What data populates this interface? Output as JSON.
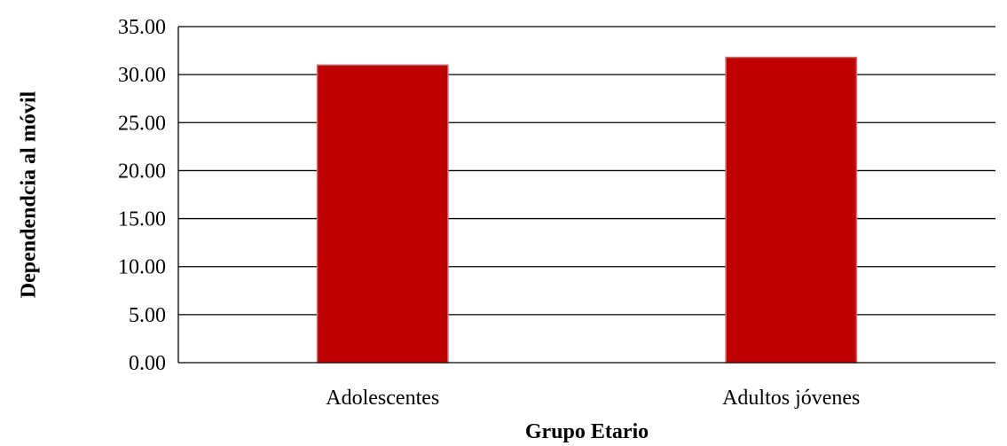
{
  "chart_data": {
    "type": "bar",
    "title": "",
    "xlabel": "Grupo Etario",
    "ylabel": "Dependendcia al móvil",
    "categories": [
      "Adolescentes",
      "Adultos jóvenes"
    ],
    "values": [
      31.0,
      31.8
    ],
    "ylim": [
      0,
      35
    ],
    "ytick_step": 5,
    "ytick_labels": [
      "0.00",
      "5.00",
      "10.00",
      "15.00",
      "20.00",
      "25.00",
      "30.00",
      "35.00"
    ],
    "grid": true,
    "legend": "none",
    "colors": {
      "bar_fill": "#c00000",
      "bar_stroke": "#d96b6b",
      "gridline": "#000000",
      "axis": "#000000",
      "text": "#000000"
    }
  }
}
